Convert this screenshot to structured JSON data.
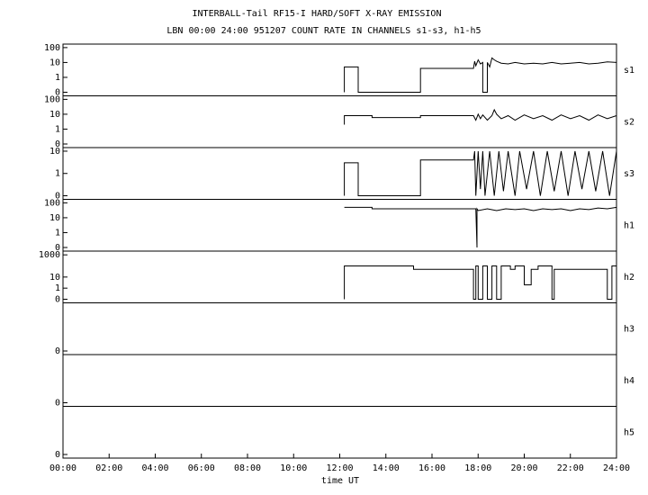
{
  "chart_data": {
    "type": "line",
    "title": "INTERBALL-Tail RF15-I HARD/SOFT X-RAY EMISSION",
    "subtitle": "LBN 00:00 24:00 951207  COUNT RATE IN CHANNELS s1-s3, h1-h5",
    "xlabel": "time UT",
    "xlim": [
      0,
      24
    ],
    "xticks": [
      {
        "value": 0,
        "label": "00:00"
      },
      {
        "value": 2,
        "label": "02:00"
      },
      {
        "value": 4,
        "label": "04:00"
      },
      {
        "value": 6,
        "label": "06:00"
      },
      {
        "value": 8,
        "label": "08:00"
      },
      {
        "value": 10,
        "label": "10:00"
      },
      {
        "value": 12,
        "label": "12:00"
      },
      {
        "value": 14,
        "label": "14:00"
      },
      {
        "value": 16,
        "label": "16:00"
      },
      {
        "value": 18,
        "label": "18:00"
      },
      {
        "value": 20,
        "label": "20:00"
      },
      {
        "value": 22,
        "label": "22:00"
      },
      {
        "value": 24,
        "label": "24:00"
      }
    ],
    "yscale": "symlog",
    "color": "#000000",
    "panels": [
      {
        "label": "s1",
        "ylim": [
          0,
          130
        ],
        "yticks": [
          0,
          1,
          10,
          100
        ],
        "x": [
          12.2,
          12.2,
          12.8,
          12.8,
          15.5,
          15.5,
          17.8,
          17.85,
          17.9,
          18.0,
          18.1,
          18.2,
          18.2,
          18.4,
          18.4,
          18.5,
          18.6,
          18.7,
          18.8,
          19.0,
          19.3,
          19.6,
          20.0,
          20.4,
          20.8,
          21.2,
          21.6,
          22.0,
          22.4,
          22.8,
          23.2,
          23.6,
          24.0
        ],
        "values": [
          0,
          5,
          5,
          0,
          0,
          4,
          4,
          12,
          6,
          15,
          8,
          10,
          0,
          0,
          10,
          5,
          20,
          15,
          12,
          9,
          8,
          10,
          8,
          9,
          8,
          10,
          8,
          9,
          10,
          8,
          9,
          11,
          10
        ]
      },
      {
        "label": "s2",
        "ylim": [
          0,
          130
        ],
        "yticks": [
          0,
          1,
          10,
          100
        ],
        "x": [
          12.2,
          12.2,
          13.4,
          13.4,
          15.5,
          15.5,
          17.8,
          17.9,
          18.0,
          18.1,
          18.2,
          18.4,
          18.6,
          18.7,
          18.8,
          19.0,
          19.3,
          19.6,
          20.0,
          20.4,
          20.8,
          21.2,
          21.6,
          22.0,
          22.4,
          22.8,
          23.2,
          23.6,
          24.0
        ],
        "values": [
          2,
          8,
          8,
          6,
          6,
          8,
          8,
          4,
          10,
          5,
          9,
          4,
          8,
          20,
          10,
          5,
          8,
          4,
          9,
          5,
          8,
          4,
          9,
          5,
          8,
          4,
          9,
          5,
          8
        ]
      },
      {
        "label": "s3",
        "ylim": [
          0,
          12
        ],
        "yticks": [
          0,
          1,
          10
        ],
        "x": [
          12.2,
          12.2,
          12.8,
          12.8,
          15.5,
          15.5,
          17.8,
          17.85,
          17.9,
          18.0,
          18.1,
          18.2,
          18.3,
          18.5,
          18.7,
          18.9,
          19.1,
          19.3,
          19.6,
          19.8,
          20.1,
          20.4,
          20.7,
          21.0,
          21.3,
          21.6,
          21.9,
          22.2,
          22.5,
          22.8,
          23.1,
          23.4,
          23.7,
          24.0
        ],
        "values": [
          0,
          3,
          3,
          0,
          0,
          4,
          4,
          10,
          0,
          10,
          0.3,
          10,
          0,
          10,
          0,
          10,
          0.2,
          10,
          0,
          10,
          0.3,
          10,
          0,
          10,
          0.2,
          10,
          0,
          10,
          0.3,
          10,
          0.2,
          10,
          0,
          10
        ]
      },
      {
        "label": "h1",
        "ylim": [
          0,
          130
        ],
        "yticks": [
          0,
          1,
          10,
          100
        ],
        "x": [
          12.2,
          13.4,
          13.4,
          17.9,
          17.95,
          17.95,
          18.0,
          18.4,
          18.8,
          19.2,
          19.6,
          20.0,
          20.4,
          20.8,
          21.2,
          21.6,
          22.0,
          22.4,
          22.8,
          23.2,
          23.6,
          24.0
        ],
        "values": [
          50,
          50,
          40,
          40,
          0,
          40,
          30,
          40,
          30,
          40,
          35,
          40,
          30,
          40,
          35,
          40,
          30,
          40,
          35,
          45,
          40,
          50
        ]
      },
      {
        "label": "h2",
        "ylim": [
          0,
          1500
        ],
        "yticks": [
          0,
          1,
          10,
          1000
        ],
        "x": [
          12.2,
          12.2,
          15.2,
          15.2,
          17.8,
          17.8,
          17.9,
          17.9,
          18.0,
          18.0,
          18.2,
          18.2,
          18.4,
          18.4,
          18.6,
          18.6,
          18.8,
          18.8,
          19.0,
          19.0,
          19.4,
          19.4,
          19.6,
          19.6,
          20.0,
          20.0,
          20.3,
          20.3,
          20.6,
          20.6,
          21.2,
          21.2,
          21.3,
          21.3,
          23.6,
          23.6,
          23.8,
          23.8,
          24.0
        ],
        "values": [
          0,
          100,
          100,
          50,
          50,
          0,
          0,
          100,
          100,
          0,
          0,
          100,
          100,
          0,
          0,
          100,
          100,
          0,
          0,
          100,
          100,
          50,
          50,
          100,
          100,
          2,
          2,
          50,
          50,
          100,
          100,
          0,
          0,
          50,
          50,
          0,
          0,
          100,
          100
        ]
      },
      {
        "label": "h3",
        "ylim": [
          0,
          1
        ],
        "yticks": [
          0
        ],
        "x": [],
        "values": []
      },
      {
        "label": "h4",
        "ylim": [
          0,
          1
        ],
        "yticks": [
          0
        ],
        "x": [],
        "values": []
      },
      {
        "label": "h5",
        "ylim": [
          0,
          1
        ],
        "yticks": [
          0
        ],
        "x": [],
        "values": []
      }
    ]
  }
}
